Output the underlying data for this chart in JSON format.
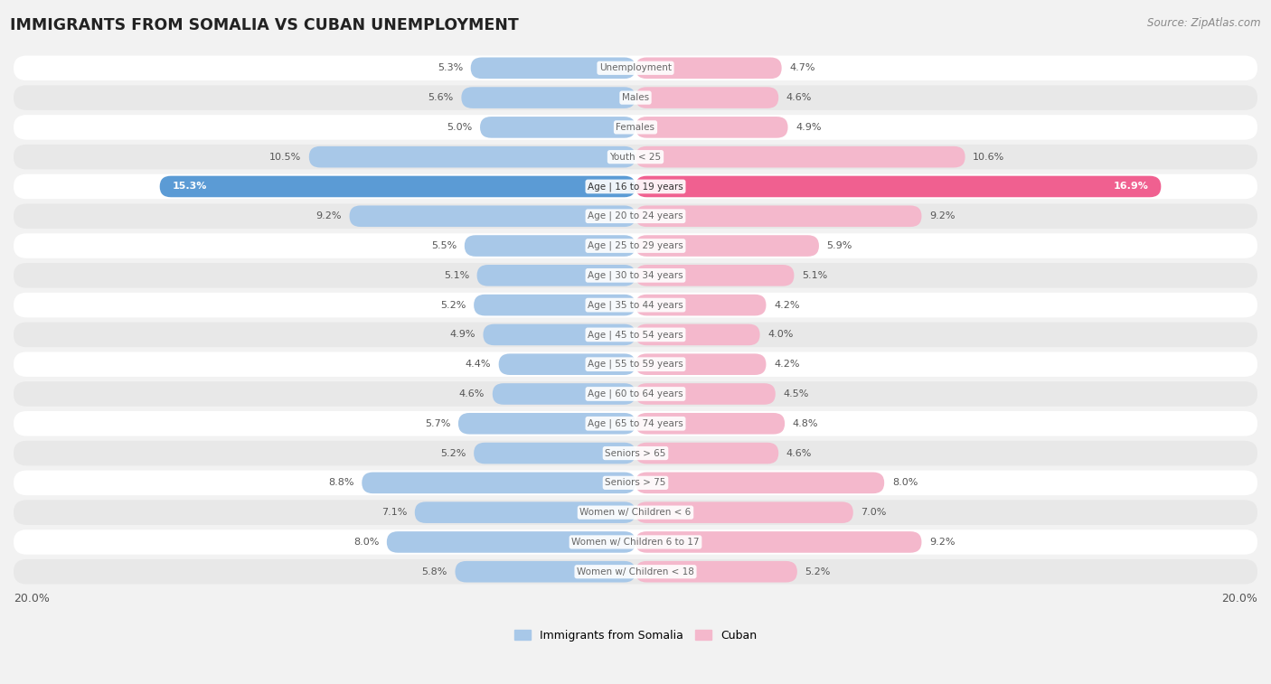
{
  "title": "IMMIGRANTS FROM SOMALIA VS CUBAN UNEMPLOYMENT",
  "source": "Source: ZipAtlas.com",
  "categories": [
    "Unemployment",
    "Males",
    "Females",
    "Youth < 25",
    "Age | 16 to 19 years",
    "Age | 20 to 24 years",
    "Age | 25 to 29 years",
    "Age | 30 to 34 years",
    "Age | 35 to 44 years",
    "Age | 45 to 54 years",
    "Age | 55 to 59 years",
    "Age | 60 to 64 years",
    "Age | 65 to 74 years",
    "Seniors > 65",
    "Seniors > 75",
    "Women w/ Children < 6",
    "Women w/ Children 6 to 17",
    "Women w/ Children < 18"
  ],
  "somalia_values": [
    5.3,
    5.6,
    5.0,
    10.5,
    15.3,
    9.2,
    5.5,
    5.1,
    5.2,
    4.9,
    4.4,
    4.6,
    5.7,
    5.2,
    8.8,
    7.1,
    8.0,
    5.8
  ],
  "cuban_values": [
    4.7,
    4.6,
    4.9,
    10.6,
    16.9,
    9.2,
    5.9,
    5.1,
    4.2,
    4.0,
    4.2,
    4.5,
    4.8,
    4.6,
    8.0,
    7.0,
    9.2,
    5.2
  ],
  "somalia_color_normal": "#a8c8e8",
  "cuban_color_normal": "#f4b8cc",
  "somalia_color_highlight": "#5b9bd5",
  "cuban_color_highlight": "#f06090",
  "highlight_row": 4,
  "axis_limit": 20.0,
  "background_color": "#f2f2f2",
  "row_bg_light": "#ffffff",
  "row_bg_dark": "#e8e8e8",
  "legend_somalia": "Immigrants from Somalia",
  "legend_cuban": "Cuban",
  "label_color_normal": "#666666",
  "label_color_highlight": "#ffffff",
  "value_color_normal": "#555555",
  "value_color_highlight": "#ffffff"
}
